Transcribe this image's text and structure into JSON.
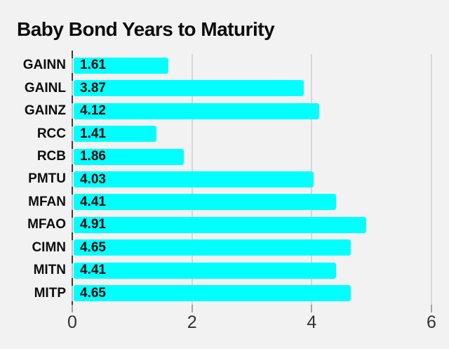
{
  "chart_data": {
    "type": "bar",
    "orientation": "horizontal",
    "title": "Baby Bond Years to Maturity",
    "categories": [
      "GAINN",
      "GAINL",
      "GAINZ",
      "RCC",
      "RCB",
      "PMTU",
      "MFAN",
      "MFAO",
      "CIMN",
      "MITN",
      "MITP"
    ],
    "values": [
      1.61,
      3.87,
      4.12,
      1.41,
      1.86,
      4.03,
      4.41,
      4.91,
      4.65,
      4.41,
      4.65
    ],
    "value_labels": [
      "1.61",
      "3.87",
      "4.12",
      "1.41",
      "1.86",
      "4.03",
      "4.41",
      "4.91",
      "4.65",
      "4.41",
      "4.65"
    ],
    "xlabel": "",
    "ylabel": "",
    "xlim": [
      0,
      6
    ],
    "x_ticks": [
      "0",
      "2",
      "4",
      "6"
    ],
    "x_tick_values": [
      0,
      2,
      4,
      6
    ],
    "gridline_values": [
      2,
      4,
      6
    ],
    "grid": true,
    "legend": false,
    "colors": {
      "bar": "#00ffff",
      "background": "#f2f2f2",
      "title_text": "#0c0c0c",
      "label_text": "#0d0d0d",
      "grid": "#d7d7d7",
      "axis_line": "#c2c2c2",
      "axis_tick_dark": "#3a3a3a",
      "axis_tick_bottom": "#a3a3a3"
    }
  }
}
